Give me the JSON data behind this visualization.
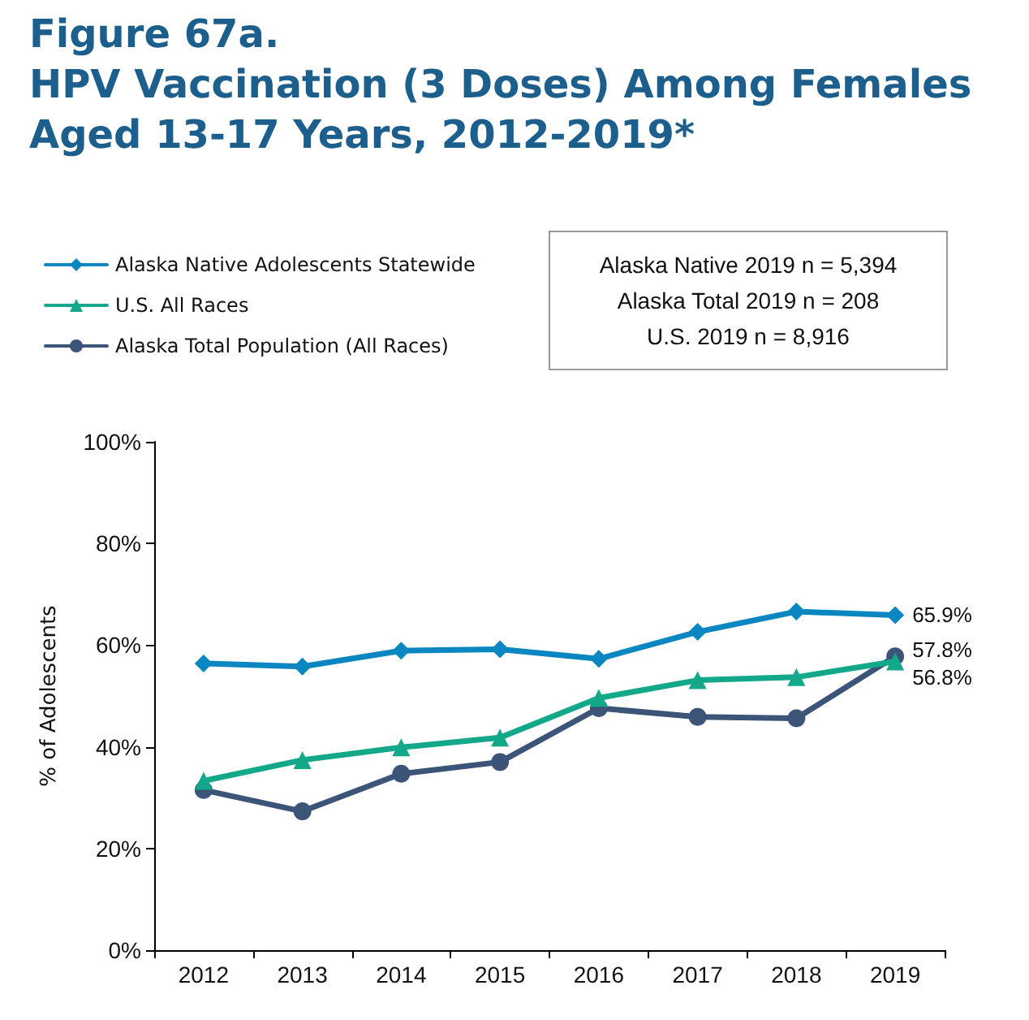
{
  "chart_data": {
    "type": "line",
    "title": "Figure 67a.\nHPV Vaccination (3 Doses) Among Females\nAged 13-17 Years, 2012-2019*",
    "ylabel": "% of Adolescents",
    "annotations": [
      "Alaska Native 2019 n = 5,394",
      "Alaska Total 2019 n = 208",
      "U.S. 2019 n = 8,916"
    ],
    "categories": [
      "2012",
      "2013",
      "2014",
      "2015",
      "2016",
      "2017",
      "2018",
      "2019"
    ],
    "series": [
      {
        "name": "Alaska Native Adolescents Statewide",
        "color": "#0a86c0",
        "marker": "diamond",
        "values": [
          56.4,
          55.8,
          58.9,
          59.2,
          57.3,
          62.6,
          66.6,
          65.9
        ],
        "value_labels": [
          null,
          null,
          null,
          null,
          null,
          null,
          null,
          "65.9%"
        ]
      },
      {
        "name": "U.S. All Races",
        "color": "#13a88a",
        "marker": "triangle",
        "values": [
          33.3,
          37.4,
          39.9,
          41.8,
          49.6,
          53.1,
          53.7,
          56.8
        ],
        "value_labels": [
          null,
          null,
          null,
          null,
          null,
          null,
          null,
          "56.8%"
        ]
      },
      {
        "name": "Alaska Total Population (All Races)",
        "color": "#3b5478",
        "marker": "circle",
        "values": [
          31.5,
          27.3,
          34.7,
          37.0,
          47.6,
          45.9,
          45.6,
          57.8
        ],
        "value_labels": [
          null,
          null,
          null,
          null,
          null,
          null,
          null,
          "57.8%"
        ]
      }
    ],
    "ylim": [
      0,
      100
    ],
    "yticks": [
      {
        "value": 0,
        "label": "0%"
      },
      {
        "value": 20,
        "label": "20%"
      },
      {
        "value": 40,
        "label": "40%"
      },
      {
        "value": 60,
        "label": "60%"
      },
      {
        "value": 80,
        "label": "80%"
      },
      {
        "value": 100,
        "label": "100%"
      }
    ],
    "grid": false,
    "legend": "top left",
    "line_style": "solid"
  }
}
